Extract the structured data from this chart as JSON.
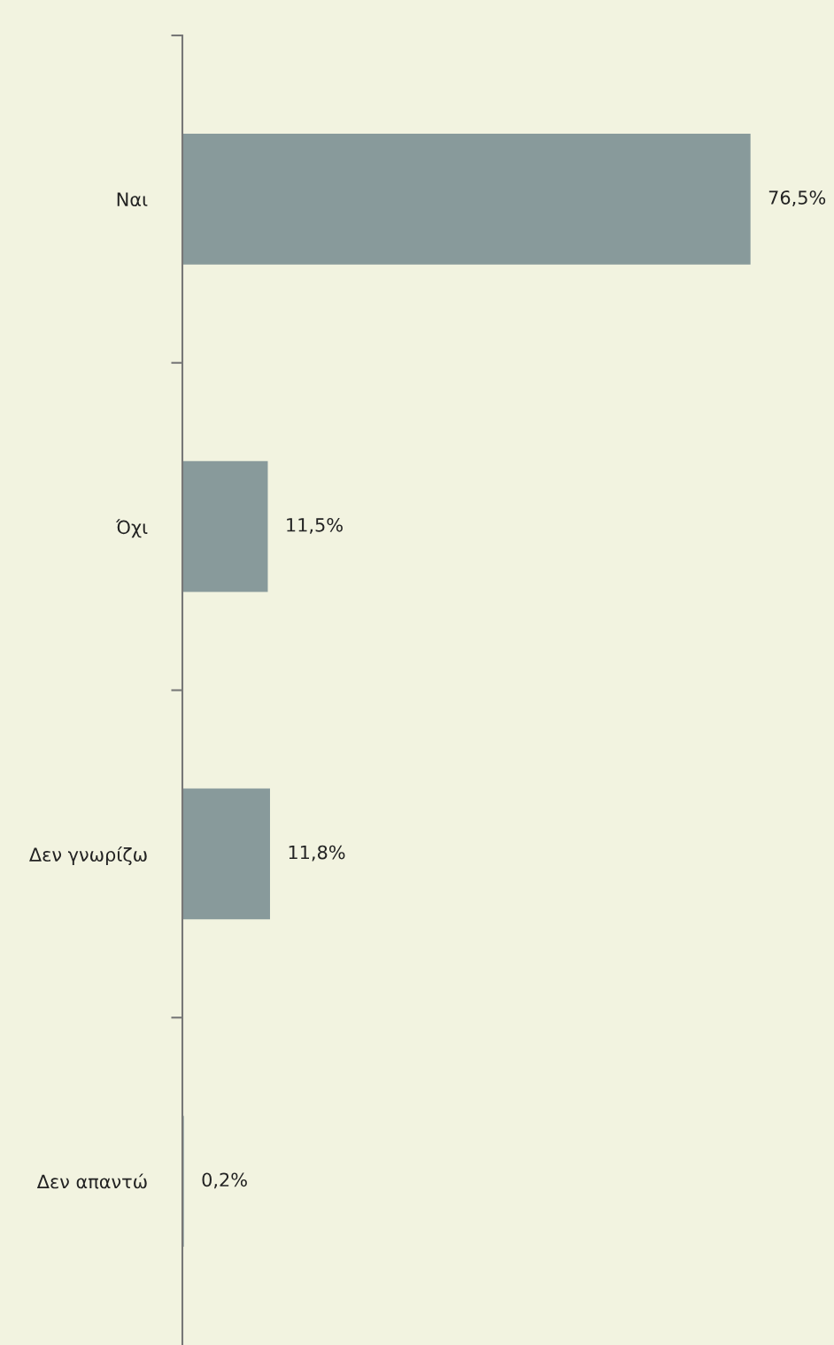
{
  "chart_data": {
    "type": "bar",
    "orientation": "horizontal",
    "categories": [
      "Ναι",
      "Όχι",
      "Δεν γνωρίζω",
      "Δεν απαντώ"
    ],
    "values": [
      76.5,
      11.5,
      11.8,
      0.2
    ],
    "value_labels": [
      "76,5%",
      "11,5%",
      "11,8%",
      "0,2%"
    ],
    "color": "#889a9b",
    "grid": false,
    "legend": false
  }
}
